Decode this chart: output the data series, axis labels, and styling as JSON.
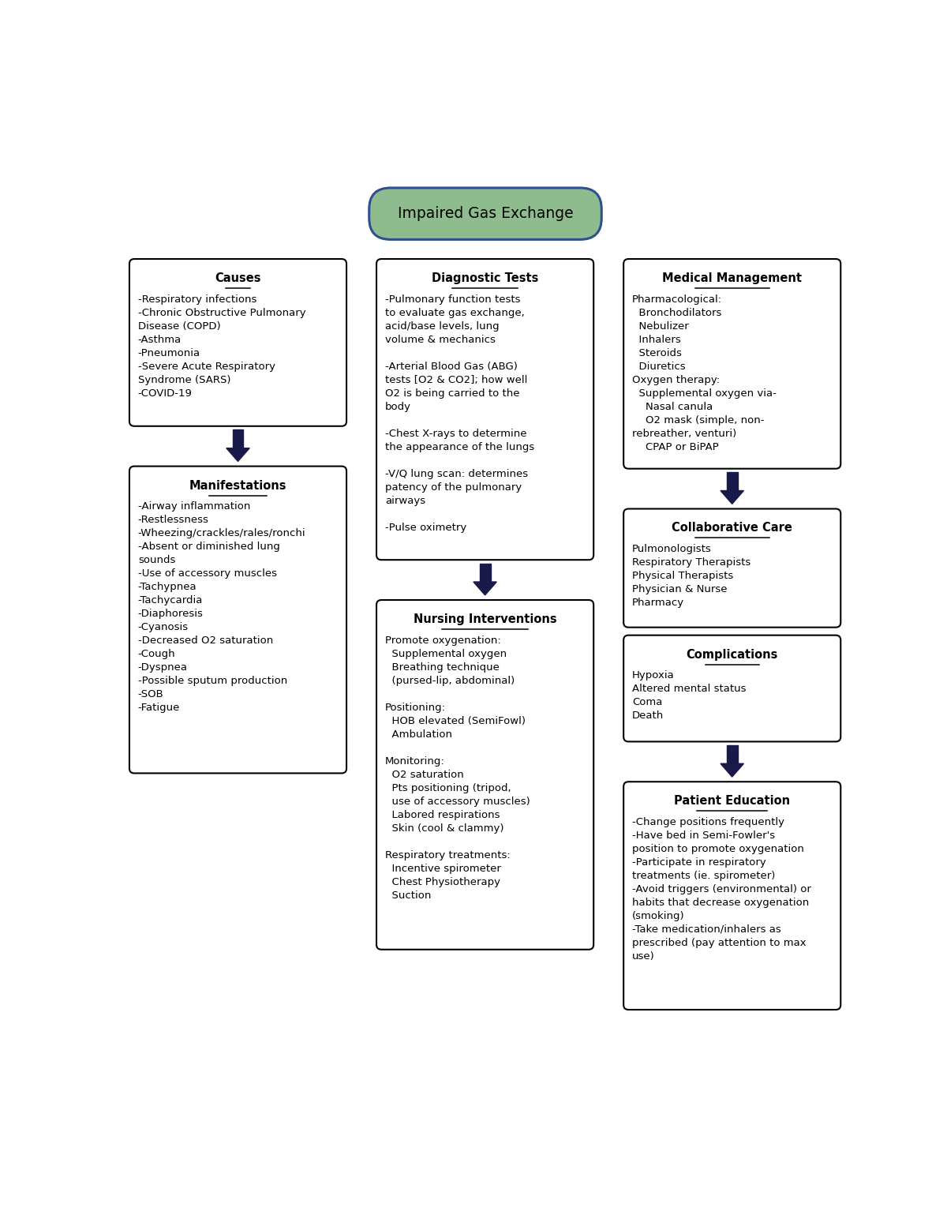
{
  "title": "Impaired Gas Exchange",
  "title_bg": "#8fbc8f",
  "title_border": "#2f4f8f",
  "box_bg": "#ffffff",
  "box_border": "#000000",
  "arrow_color": "#1a1a4a",
  "causes_title": "Causes",
  "causes_text": "-Respiratory infections\n-Chronic Obstructive Pulmonary\nDisease (COPD)\n-Asthma\n-Pneumonia\n-Severe Acute Respiratory\nSyndrome (SARS)\n-COVID-19",
  "manifestations_title": "Manifestations",
  "manifestations_text": "-Airway inflammation\n-Restlessness\n-Wheezing/crackles/rales/ronchi\n-Absent or diminished lung\nsounds\n-Use of accessory muscles\n-Tachypnea\n-Tachycardia\n-Diaphoresis\n-Cyanosis\n-Decreased O2 saturation\n-Cough\n-Dyspnea\n-Possible sputum production\n-SOB\n-Fatigue",
  "diag_title": "Diagnostic Tests",
  "diag_text": "-Pulmonary function tests\nto evaluate gas exchange,\nacid/base levels, lung\nvolume & mechanics\n\n-Arterial Blood Gas (ABG)\ntests [O2 & CO2]; how well\nO2 is being carried to the\nbody\n\n-Chest X-rays to determine\nthe appearance of the lungs\n\n-V/Q lung scan: determines\npatency of the pulmonary\nairways\n\n-Pulse oximetry",
  "nursing_title": "Nursing Interventions",
  "nursing_text": "Promote oxygenation:\n  Supplemental oxygen\n  Breathing technique\n  (pursed-lip, abdominal)\n\nPositioning:\n  HOB elevated (SemiFowl)\n  Ambulation\n\nMonitoring:\n  O2 saturation\n  Pts positioning (tripod,\n  use of accessory muscles)\n  Labored respirations\n  Skin (cool & clammy)\n\nRespiratory treatments:\n  Incentive spirometer\n  Chest Physiotherapy\n  Suction",
  "medical_title": "Medical Management",
  "medical_text": "Pharmacological:\n  Bronchodilators\n  Nebulizer\n  Inhalers\n  Steroids\n  Diuretics\nOxygen therapy:\n  Supplemental oxygen via-\n    Nasal canula\n    O2 mask (simple, non-\nrebreather, venturi)\n    CPAP or BiPAP",
  "collab_title": "Collaborative Care",
  "collab_text": "Pulmonologists\nRespiratory Therapists\nPhysical Therapists\nPhysician & Nurse\nPharmacy",
  "complications_title": "Complications",
  "complications_text": "Hypoxia\nAltered mental status\nComa\nDeath",
  "patient_title": "Patient Education",
  "patient_text": "-Change positions frequently\n-Have bed in Semi-Fowler's\nposition to promote oxygenation\n-Participate in respiratory\ntreatments (ie. spirometer)\n-Avoid triggers (environmental) or\nhabits that decrease oxygenation\n(smoking)\n-Take medication/inhalers as\nprescribed (pay attention to max\nuse)"
}
